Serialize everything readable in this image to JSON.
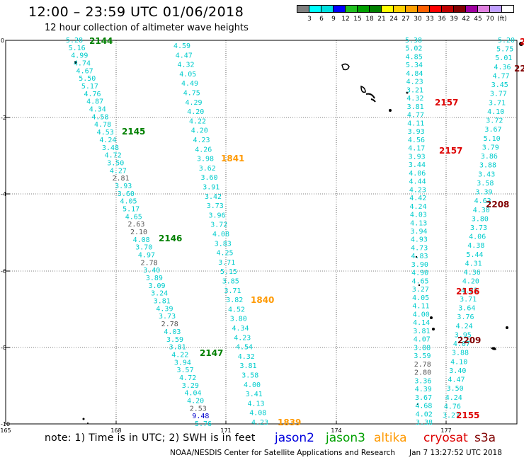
{
  "title": "12:00 – 23:59 UTC 01/06/2018",
  "subtitle": "12 hour collection of altimeter wave heights",
  "colorbar": {
    "colors": [
      "#808080",
      "#00ffff",
      "#00e0e0",
      "#0000ff",
      "#20c020",
      "#00a000",
      "#008000",
      "#ffff00",
      "#ffd000",
      "#ffa000",
      "#ff6000",
      "#ff0000",
      "#c00000",
      "#800000",
      "#a000a0",
      "#e080e0",
      "#c0a0ff",
      "#ffffff"
    ],
    "labels": [
      "3",
      "6",
      "9",
      "12",
      "15",
      "18",
      "21",
      "24",
      "27",
      "30",
      "33",
      "36",
      "39",
      "42",
      "45",
      "70",
      "(ft)"
    ]
  },
  "axes": {
    "x_ticks": [
      "165",
      "168",
      "171",
      "174",
      "177"
    ],
    "y_ticks": [
      "0",
      "-2",
      "-4",
      "-6",
      "-8",
      "-10"
    ]
  },
  "tracks": [
    {
      "values": [
        "5.28",
        "5.16",
        "4.99",
        "4.74",
        "4.67",
        "5.50",
        "5.17",
        "4.76",
        "4.87",
        "4.34",
        "4.58",
        "4.78",
        "4.53",
        "4.24",
        "3.48",
        "4.72",
        "3.50",
        "4.27",
        "2.81",
        "3.93",
        "3.60",
        "4.05",
        "5.17",
        "4.65",
        "2.63",
        "2.10",
        "4.08",
        "3.70",
        "4.97",
        "2.78",
        "3.40",
        "3.89",
        "3.09",
        "3.24",
        "3.81",
        "4.39",
        "3.73",
        "2.78",
        "4.03",
        "3.59",
        "3.81",
        "4.22",
        "3.94",
        "3.57",
        "4.72",
        "3.29",
        "4.04",
        "4.20",
        "2.53",
        "9.48",
        "5.76"
      ]
    },
    {
      "values": [
        "4.59",
        "4.47",
        "4.32",
        "4.05",
        "4.49",
        "4.75",
        "4.29",
        "4.20",
        "4.22",
        "4.20",
        "4.23",
        "4.26",
        "3.98",
        "3.62",
        "3.60",
        "3.91",
        "3.42",
        "3.73",
        "3.96",
        "3.72",
        "4.08",
        "3.83",
        "4.25",
        "3.71",
        "5.15",
        "3.85",
        "3.71",
        "3.82",
        "4.52",
        "3.80",
        "4.34",
        "4.23",
        "4.54",
        "4.32",
        "3.81",
        "3.58",
        "4.00",
        "3.41",
        "4.13",
        "4.08",
        "4.23"
      ]
    },
    {
      "values": [
        "5.38",
        "5.02",
        "4.85",
        "5.34",
        "4.84",
        "4.23",
        "3.21",
        "4.32",
        "3.81",
        "4.77",
        "4.11",
        "3.93",
        "4.56",
        "4.17",
        "3.93",
        "3.44",
        "4.06",
        "4.44",
        "4.23",
        "4.42",
        "4.24",
        "4.03",
        "4.13",
        "3.94",
        "4.93",
        "4.73",
        "4.83",
        "3.90",
        "4.90",
        "4.65",
        "3.27",
        "4.05",
        "4.11",
        "4.00",
        "4.14",
        "3.81",
        "4.07",
        "3.88",
        "3.59",
        "2.78",
        "2.80",
        "3.36",
        "4.39",
        "3.67",
        "4.68",
        "4.02",
        "3.38"
      ]
    },
    {
      "values": [
        "5.20",
        "5.75",
        "5.01",
        "4.36",
        "4.77",
        "3.45",
        "3.77",
        "3.71",
        "4.10",
        "3.72",
        "3.67",
        "5.10",
        "3.79",
        "3.86",
        "3.88",
        "3.43",
        "3.58",
        "3.39",
        "4.63",
        "4.30",
        "3.80",
        "3.73",
        "4.06",
        "4.38",
        "5.44",
        "4.31",
        "4.36",
        "4.20",
        "4.22",
        "3.71",
        "3.64",
        "3.76",
        "4.24",
        "3.95",
        "4.07",
        "3.88",
        "4.10",
        "3.40",
        "4.47",
        "3.50",
        "4.24",
        "4.76",
        "3.27"
      ]
    }
  ],
  "pass_labels": [
    {
      "text": "2144",
      "color": "#008000"
    },
    {
      "text": "2145",
      "color": "#008000"
    },
    {
      "text": "2146",
      "color": "#008000"
    },
    {
      "text": "2147",
      "color": "#008000"
    },
    {
      "text": "1841",
      "color": "#ff9900"
    },
    {
      "text": "1840",
      "color": "#ff9900"
    },
    {
      "text": "1839",
      "color": "#ff9900"
    },
    {
      "text": "2157",
      "color": "#dd0000"
    },
    {
      "text": "2157",
      "color": "#dd0000"
    },
    {
      "text": "2156",
      "color": "#dd0000"
    },
    {
      "text": "2155",
      "color": "#dd0000"
    },
    {
      "text": "2208",
      "color": "#800000"
    },
    {
      "text": "2209",
      "color": "#800000"
    },
    {
      "text": "22",
      "color": "#800000"
    },
    {
      "text": "2",
      "color": "#dd0000"
    }
  ],
  "note": "note: 1) Time is in UTC; 2) SWH is in feet",
  "satellites": [
    {
      "name": "jason2",
      "color": "#0000dd"
    },
    {
      "name": "jason3",
      "color": "#00a000"
    },
    {
      "name": "altika",
      "color": "#ff9900"
    },
    {
      "name": "cryosat",
      "color": "#dd0000"
    },
    {
      "name": "s3a",
      "color": "#800000"
    }
  ],
  "footer_center": "NOAA/NESDIS Center for Satellite Applications and Research",
  "footer_time": "Jan  7 13:27:52 UTC 2018"
}
